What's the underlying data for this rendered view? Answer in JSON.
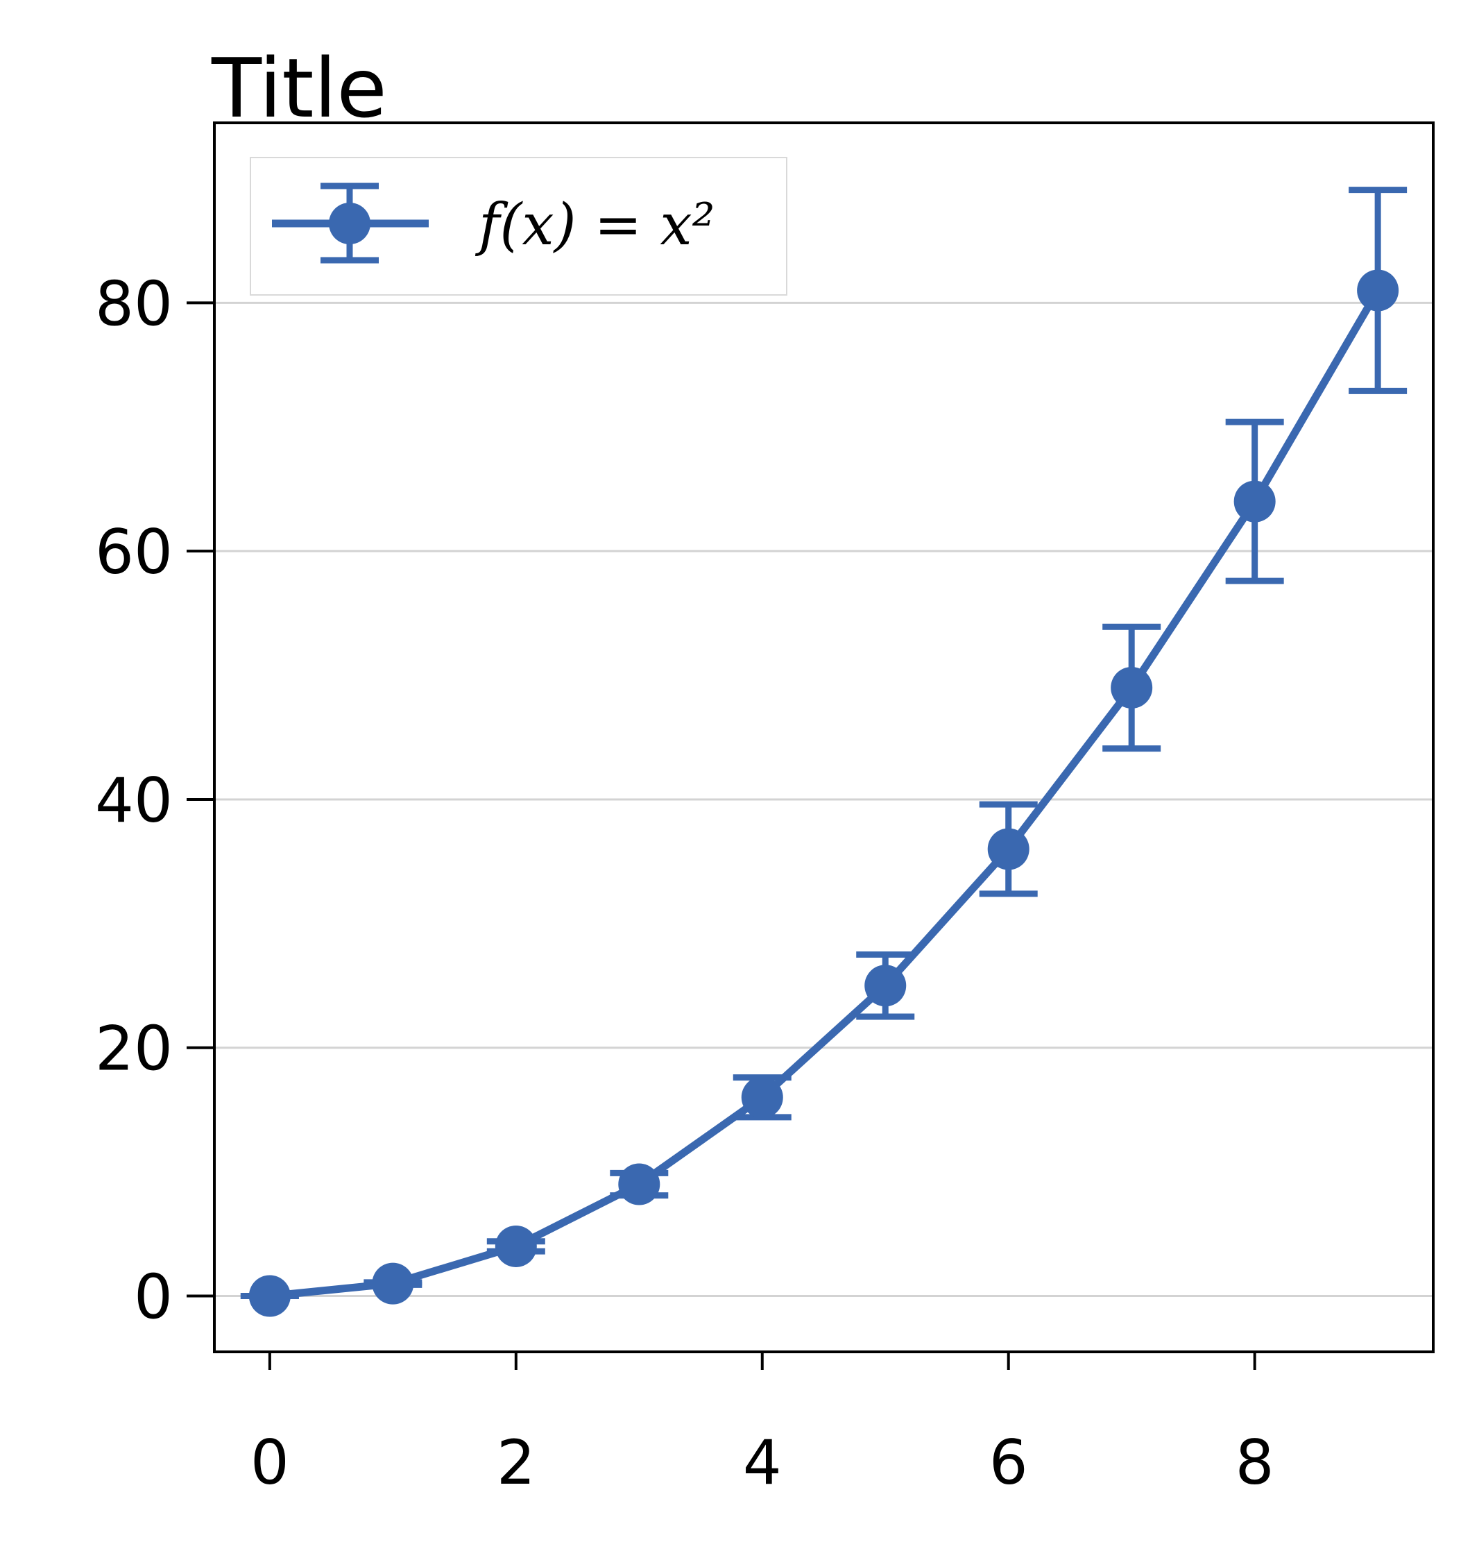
{
  "title": "Title",
  "colors": {
    "series": "#3a68b0",
    "grid": "#d3d3d3",
    "axis": "#000000",
    "legend_border": "#d9d9d9"
  },
  "chart_data": {
    "type": "line",
    "title": "Title",
    "xlabel": "",
    "ylabel": "",
    "xlim": [
      -0.45,
      9.45
    ],
    "ylim": [
      -4.5,
      94.5
    ],
    "xticks": [
      0,
      2,
      4,
      6,
      8
    ],
    "yticks": [
      0,
      20,
      40,
      60,
      80
    ],
    "grid": "y-only",
    "legend_position": "top-left",
    "series": [
      {
        "name": "f(x) = x²",
        "x": [
          0,
          1,
          2,
          3,
          4,
          5,
          6,
          7,
          8,
          9
        ],
        "y": [
          0,
          1,
          4,
          9,
          16,
          25,
          36,
          49,
          64,
          81
        ],
        "error": [
          0,
          0.1,
          0.4,
          0.9,
          1.6,
          2.5,
          3.6,
          4.9,
          6.4,
          8.1
        ],
        "error_label": "",
        "marker": "circle"
      }
    ]
  }
}
